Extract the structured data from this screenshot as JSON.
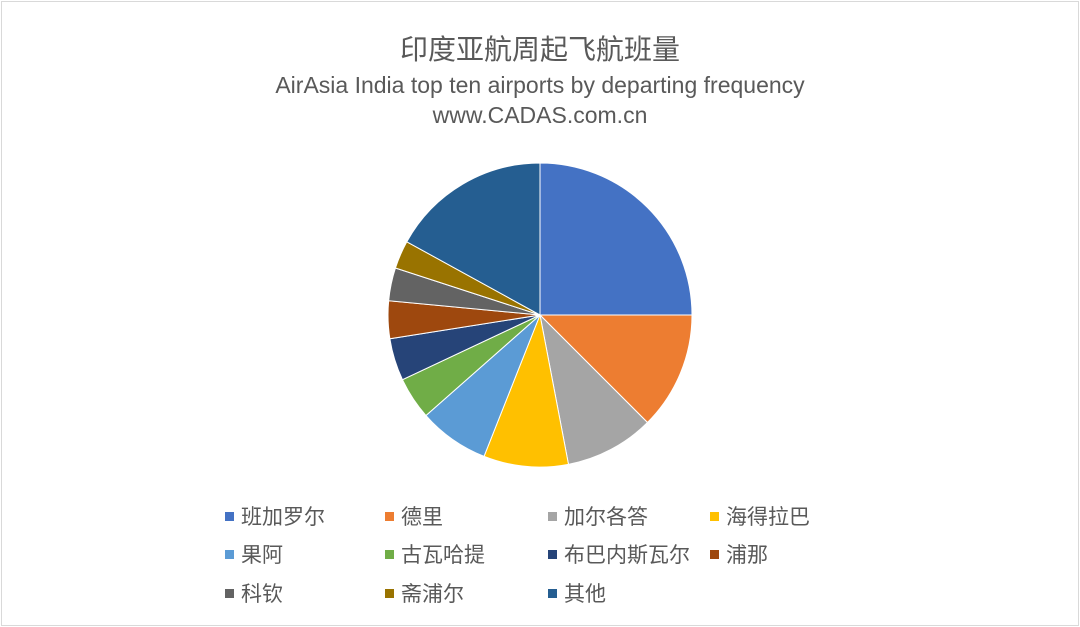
{
  "chart_data": {
    "type": "pie",
    "title": "印度亚航周起飞航班量",
    "subtitle": "AirAsia India top ten airports by departing frequency",
    "source": "www.CADAS.com.cn",
    "legend_position": "bottom",
    "slices": [
      {
        "label": "班加罗尔",
        "value": 25.0,
        "color": "#4472C4"
      },
      {
        "label": "德里",
        "value": 12.5,
        "color": "#ED7D31"
      },
      {
        "label": "加尔各答",
        "value": 9.5,
        "color": "#A5A5A5"
      },
      {
        "label": "海得拉巴",
        "value": 9.0,
        "color": "#FFC000"
      },
      {
        "label": "果阿",
        "value": 7.5,
        "color": "#5B9BD5"
      },
      {
        "label": "古瓦哈提",
        "value": 4.5,
        "color": "#70AD47"
      },
      {
        "label": "布巴内斯瓦尔",
        "value": 4.5,
        "color": "#264478"
      },
      {
        "label": "浦那",
        "value": 4.0,
        "color": "#9E480E"
      },
      {
        "label": "科钦",
        "value": 3.5,
        "color": "#636363"
      },
      {
        "label": "斋浦尔",
        "value": 3.0,
        "color": "#997300"
      },
      {
        "label": "其他",
        "value": 17.0,
        "color": "#255E91"
      }
    ]
  }
}
